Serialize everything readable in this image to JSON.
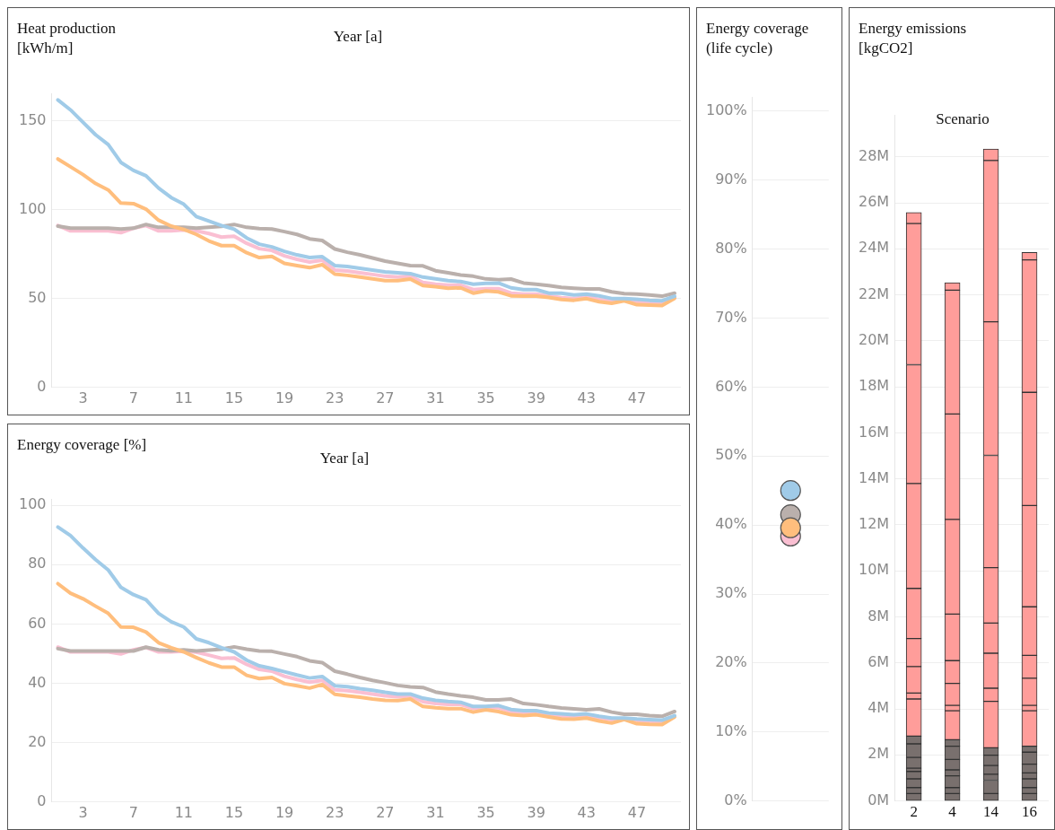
{
  "chart_data": [
    {
      "type": "line",
      "ylabel": "Heat production [kWh/m]",
      "xlabel": "Year [a]",
      "grid": "y",
      "x": [
        1,
        2,
        3,
        4,
        5,
        6,
        7,
        8,
        9,
        10,
        11,
        12,
        13,
        14,
        15,
        16,
        17,
        18,
        19,
        20,
        21,
        22,
        23,
        24,
        25,
        26,
        27,
        28,
        29,
        30,
        31,
        32,
        33,
        34,
        35,
        36,
        37,
        38,
        39,
        40,
        41,
        42,
        43,
        44,
        45,
        46,
        47,
        48,
        49,
        50
      ],
      "xlim": [
        0.5,
        50.5
      ],
      "xticks": [
        3,
        7,
        11,
        15,
        19,
        23,
        27,
        31,
        35,
        39,
        43,
        47
      ],
      "ylim": [
        0,
        165
      ],
      "yticks": [
        0,
        50,
        100,
        150
      ],
      "series": [
        {
          "color": "#fabfd2",
          "values": [
            91,
            88,
            88,
            88,
            88,
            87,
            89.5,
            91,
            88,
            88,
            88.5,
            88,
            86.5,
            84.5,
            85,
            81,
            78,
            77,
            74,
            72,
            70.5,
            71.5,
            66,
            65.5,
            64.5,
            63.5,
            62.5,
            62,
            62.5,
            59,
            58,
            57.5,
            57.5,
            55,
            55.5,
            55.5,
            53,
            52.5,
            52.5,
            51.5,
            50.5,
            50,
            51,
            49.5,
            48.5,
            49,
            48,
            47.5,
            47,
            50.5
          ]
        },
        {
          "color": "#bab0ac",
          "values": [
            90.7,
            89.5,
            89.5,
            89.5,
            89.5,
            89,
            89.5,
            91.6,
            90,
            90,
            90,
            89.5,
            90,
            90.5,
            91.6,
            90,
            89.3,
            89,
            87.6,
            86,
            83.5,
            82.6,
            77.8,
            76,
            74.5,
            72.8,
            71,
            69.7,
            68.5,
            68.3,
            65.6,
            64.4,
            63.2,
            62.5,
            61,
            60.6,
            60.9,
            58.7,
            58,
            57.3,
            56.3,
            55.8,
            55.4,
            55.4,
            53.7,
            52.7,
            52.5,
            52,
            51.3,
            53
          ]
        },
        {
          "color": "#ffbe7d",
          "values": [
            128.4,
            124,
            119.6,
            114.6,
            111,
            103.6,
            103.3,
            100.2,
            94,
            90.7,
            88.8,
            86,
            82.3,
            79.7,
            79.7,
            75.7,
            73,
            73.7,
            69.7,
            68.5,
            67.3,
            69,
            63.7,
            63,
            62,
            61,
            60,
            60,
            60.9,
            57.3,
            56.6,
            55.8,
            56,
            53,
            54.2,
            53.7,
            51.5,
            51.3,
            51.3,
            50.6,
            49.4,
            49,
            49.9,
            48.2,
            47.3,
            48.7,
            46.5,
            46.3,
            46,
            50.1
          ]
        },
        {
          "color": "#a0cbe8",
          "values": [
            161.6,
            156,
            149,
            142,
            136.5,
            126.5,
            122,
            119,
            112,
            106.7,
            103,
            96,
            93.5,
            91,
            89,
            84,
            80.5,
            79,
            76.5,
            74.5,
            73,
            73.5,
            68.5,
            68,
            67,
            66,
            65,
            64.5,
            64,
            62,
            61,
            60,
            59.5,
            58,
            58.5,
            58.7,
            56,
            55,
            55,
            53,
            53,
            52,
            52.5,
            51.5,
            50,
            50,
            49.6,
            49,
            48.7,
            51.3
          ]
        }
      ]
    },
    {
      "type": "line",
      "ylabel": "Energy coverage [%]",
      "xlabel": "Year [a]",
      "grid": "y",
      "x": [
        1,
        2,
        3,
        4,
        5,
        6,
        7,
        8,
        9,
        10,
        11,
        12,
        13,
        14,
        15,
        16,
        17,
        18,
        19,
        20,
        21,
        22,
        23,
        24,
        25,
        26,
        27,
        28,
        29,
        30,
        31,
        32,
        33,
        34,
        35,
        36,
        37,
        38,
        39,
        40,
        41,
        42,
        43,
        44,
        45,
        46,
        47,
        48,
        49,
        50
      ],
      "xlim": [
        0.5,
        50.5
      ],
      "xticks": [
        3,
        7,
        11,
        15,
        19,
        23,
        27,
        31,
        35,
        39,
        43,
        47
      ],
      "ylim": [
        0,
        102
      ],
      "yticks": [
        0,
        20,
        40,
        60,
        80,
        100
      ],
      "series": [
        {
          "color": "#fabfd2",
          "values": [
            52.2,
            50.6,
            50.6,
            50.6,
            50.6,
            49.9,
            51.3,
            52.1,
            50.6,
            50.6,
            50.8,
            50.5,
            49.5,
            48.4,
            48.6,
            46.4,
            44.7,
            44.1,
            42.4,
            41.3,
            40.4,
            41,
            37.8,
            37.5,
            37,
            36.4,
            35.8,
            35.5,
            35.8,
            33.8,
            33.2,
            32.9,
            32.9,
            31.5,
            31.8,
            31.8,
            30.4,
            30.1,
            30.1,
            29.5,
            28.9,
            28.6,
            29.2,
            28.4,
            27.8,
            28.1,
            27.5,
            27.2,
            26.9,
            28.9
          ]
        },
        {
          "color": "#bab0ac",
          "values": [
            51.7,
            50.9,
            50.9,
            50.9,
            50.9,
            50.9,
            50.9,
            52.2,
            51.3,
            51,
            51.3,
            50.9,
            51.2,
            51.5,
            52.3,
            51.5,
            50.9,
            50.8,
            49.9,
            49,
            47.6,
            47,
            44.1,
            43.1,
            42,
            41,
            40.2,
            39.3,
            38.8,
            38.6,
            37.1,
            36.4,
            35.8,
            35.3,
            34.4,
            34.4,
            34.7,
            33.2,
            32.8,
            32.2,
            31.7,
            31.4,
            31.1,
            31.4,
            30.3,
            29.6,
            29.6,
            29.1,
            28.9,
            30.5
          ]
        },
        {
          "color": "#ffbe7d",
          "values": [
            73.6,
            70.4,
            68.5,
            66,
            63.6,
            59,
            58.9,
            57.3,
            53.7,
            52,
            50.6,
            48.7,
            46.9,
            45.5,
            45.5,
            42.7,
            41.6,
            42,
            39.9,
            39.2,
            38.4,
            39.6,
            36.3,
            35.8,
            35.3,
            34.7,
            34.3,
            34.2,
            34.7,
            32.2,
            31.8,
            31.5,
            31.5,
            30.3,
            31.1,
            30.5,
            29.4,
            29.1,
            29.4,
            28.7,
            28,
            27.9,
            28.3,
            27.3,
            26.6,
            27.8,
            26.4,
            26.2,
            26.1,
            28.7
          ]
        },
        {
          "color": "#a0cbe8",
          "values": [
            92.7,
            89.8,
            85.6,
            81.7,
            78.2,
            72.4,
            69.9,
            68.2,
            63.6,
            60.8,
            59,
            55,
            53.7,
            52,
            50.6,
            47.8,
            45.9,
            45,
            43.9,
            42.8,
            41.8,
            42.3,
            39.2,
            38.9,
            38.2,
            37.7,
            37,
            36.4,
            36.4,
            35,
            34.3,
            33.9,
            33.6,
            32.2,
            32.2,
            32.5,
            31.2,
            30.8,
            30.8,
            30,
            29.7,
            29.4,
            29.7,
            28.9,
            28.3,
            28.3,
            28,
            27.8,
            27.6,
            29.1
          ]
        }
      ]
    },
    {
      "type": "scatter",
      "ylabel": "Energy coverage (life cycle)",
      "grid": "y",
      "marker": "circle",
      "categories": [
        null
      ],
      "ylim": [
        0,
        102
      ],
      "yticks": [
        {
          "value": 0,
          "label": "0%"
        },
        {
          "value": 10,
          "label": "10%"
        },
        {
          "value": 20,
          "label": "20%"
        },
        {
          "value": 30,
          "label": "30%"
        },
        {
          "value": 40,
          "label": "40%"
        },
        {
          "value": 50,
          "label": "50%"
        },
        {
          "value": 60,
          "label": "60%"
        },
        {
          "value": 70,
          "label": "70%"
        },
        {
          "value": 80,
          "label": "80%"
        },
        {
          "value": 90,
          "label": "90%"
        },
        {
          "value": 100,
          "label": "100%"
        }
      ],
      "series": [
        {
          "color": "#fabfd2",
          "values": [
            38.4
          ]
        },
        {
          "color": "#bab0ac",
          "values": [
            41.5
          ]
        },
        {
          "color": "#ffbe7d",
          "values": [
            39.6
          ]
        },
        {
          "color": "#a0cbe8",
          "values": [
            45
          ]
        }
      ]
    },
    {
      "type": "bar",
      "ylabel": "Energy emissions [kgCO2]",
      "xlabel": "Scenario",
      "grid": "y",
      "stacked": true,
      "categories": [
        "2",
        "4",
        "14",
        "16"
      ],
      "ylim": [
        0,
        29800000
      ],
      "yticks": [
        {
          "value": 0,
          "label": "0M"
        },
        {
          "value": 2000000,
          "label": "2M"
        },
        {
          "value": 4000000,
          "label": "4M"
        },
        {
          "value": 6000000,
          "label": "6M"
        },
        {
          "value": 8000000,
          "label": "8M"
        },
        {
          "value": 10000000,
          "label": "10M"
        },
        {
          "value": 12000000,
          "label": "12M"
        },
        {
          "value": 14000000,
          "label": "14M"
        },
        {
          "value": 16000000,
          "label": "16M"
        },
        {
          "value": 18000000,
          "label": "18M"
        },
        {
          "value": 20000000,
          "label": "20M"
        },
        {
          "value": 22000000,
          "label": "22M"
        },
        {
          "value": 24000000,
          "label": "24M"
        },
        {
          "value": 26000000,
          "label": "26M"
        },
        {
          "value": 28000000,
          "label": "28M"
        }
      ],
      "series": [
        {
          "color": "#79706e",
          "values": [
            320000,
            320000,
            320000,
            320000
          ]
        },
        {
          "color": "#79706e",
          "values": [
            260000,
            260000,
            580000,
            260000
          ]
        },
        {
          "color": "#79706e",
          "values": [
            380000,
            510000,
            260000,
            380000
          ]
        },
        {
          "color": "#79706e",
          "values": [
            320000,
            260000,
            380000,
            260000
          ]
        },
        {
          "color": "#79706e",
          "values": [
            140000,
            450000,
            450000,
            380000
          ]
        },
        {
          "color": "#79706e",
          "values": [
            470000,
            580000,
            320000,
            520000
          ]
        },
        {
          "color": "#79706e",
          "values": [
            590000,
            280000,
            null,
            260000
          ]
        },
        {
          "color": "#79706e",
          "values": [
            340000,
            null,
            null,
            null
          ]
        },
        {
          "color": "#ff9d9a",
          "values": [
            1610000,
            1260000,
            2020000,
            1540000
          ]
        },
        {
          "color": "#ff9d9a",
          "values": [
            260000,
            230000,
            570000,
            230000
          ]
        },
        {
          "color": "#ff9d9a",
          "values": [
            1150000,
            960000,
            1520000,
            1180000
          ]
        },
        {
          "color": "#ff9d9a",
          "values": [
            1220000,
            990000,
            1310000,
            1000000
          ]
        },
        {
          "color": "#ff9d9a",
          "values": [
            2180000,
            2020000,
            2410000,
            2110000
          ]
        },
        {
          "color": "#ff9d9a",
          "values": [
            4560000,
            4120000,
            4880000,
            4400000
          ]
        },
        {
          "color": "#ff9d9a",
          "values": [
            5160000,
            4580000,
            5810000,
            4920000
          ]
        },
        {
          "color": "#ff9d9a",
          "values": [
            6140000,
            5380000,
            7010000,
            5760000
          ]
        },
        {
          "color": "#ff9d9a",
          "values": [
            480000,
            330000,
            500000,
            320000
          ]
        }
      ]
    }
  ]
}
